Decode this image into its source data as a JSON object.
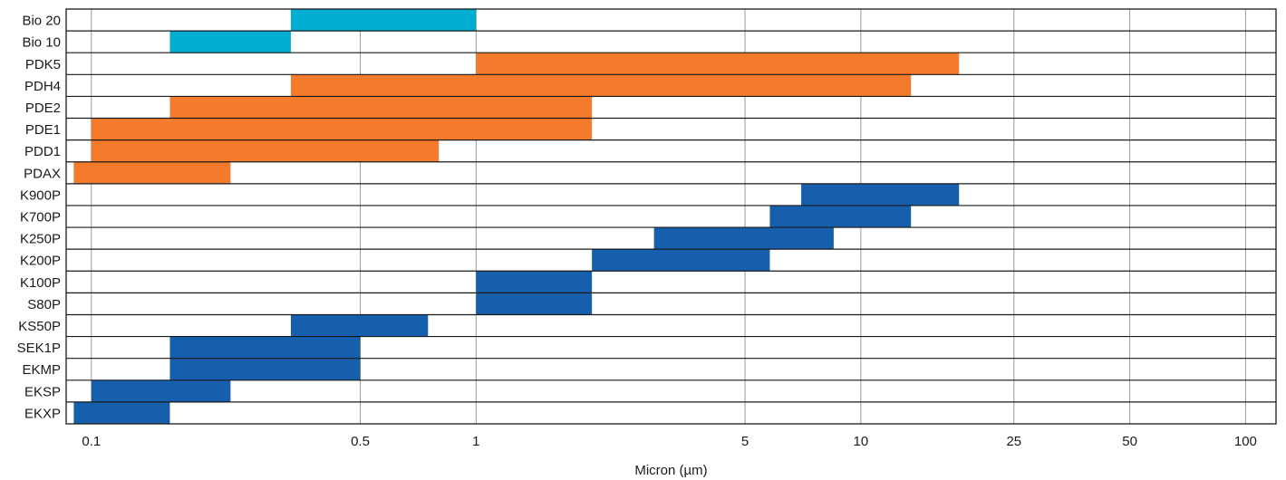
{
  "chart_data": {
    "type": "bar",
    "orientation": "horizontal-range",
    "x_scale": "log",
    "xlabel": "Micron (µm)",
    "xlim": [
      0.086,
      120
    ],
    "xticks": [
      0.1,
      0.5,
      1,
      5,
      10,
      25,
      50,
      100
    ],
    "xtick_labels": [
      "0.1",
      "0.5",
      "1",
      "5",
      "10",
      "25",
      "50",
      "100"
    ],
    "grid": true,
    "colors": {
      "bio": "#00aed1",
      "pd": "#f47a2c",
      "k": "#155fad"
    },
    "rows": [
      {
        "label": "Bio 20",
        "min": 0.33,
        "max": 1.0,
        "group": "bio"
      },
      {
        "label": "Bio 10",
        "min": 0.16,
        "max": 0.33,
        "group": "bio"
      },
      {
        "label": "PDK5",
        "min": 1.0,
        "max": 18,
        "group": "pd"
      },
      {
        "label": "PDH4",
        "min": 0.33,
        "max": 13.5,
        "group": "pd"
      },
      {
        "label": "PDE2",
        "min": 0.16,
        "max": 2.0,
        "group": "pd"
      },
      {
        "label": "PDE1",
        "min": 0.1,
        "max": 2.0,
        "group": "pd"
      },
      {
        "label": "PDD1",
        "min": 0.1,
        "max": 0.8,
        "group": "pd"
      },
      {
        "label": "PDAX",
        "min": 0.09,
        "max": 0.23,
        "group": "pd"
      },
      {
        "label": "K900P",
        "min": 7.0,
        "max": 18,
        "group": "k"
      },
      {
        "label": "K700P",
        "min": 5.8,
        "max": 13.5,
        "group": "k"
      },
      {
        "label": "K250P",
        "min": 2.9,
        "max": 8.5,
        "group": "k"
      },
      {
        "label": "K200P",
        "min": 2.0,
        "max": 5.8,
        "group": "k"
      },
      {
        "label": "K100P",
        "min": 1.0,
        "max": 2.0,
        "group": "k"
      },
      {
        "label": "S80P",
        "min": 1.0,
        "max": 2.0,
        "group": "k"
      },
      {
        "label": "KS50P",
        "min": 0.33,
        "max": 0.75,
        "group": "k"
      },
      {
        "label": "SEK1P",
        "min": 0.16,
        "max": 0.5,
        "group": "k"
      },
      {
        "label": "EKMP",
        "min": 0.16,
        "max": 0.5,
        "group": "k"
      },
      {
        "label": "EKSP",
        "min": 0.1,
        "max": 0.23,
        "group": "k"
      },
      {
        "label": "EKXP",
        "min": 0.09,
        "max": 0.16,
        "group": "k"
      }
    ]
  }
}
